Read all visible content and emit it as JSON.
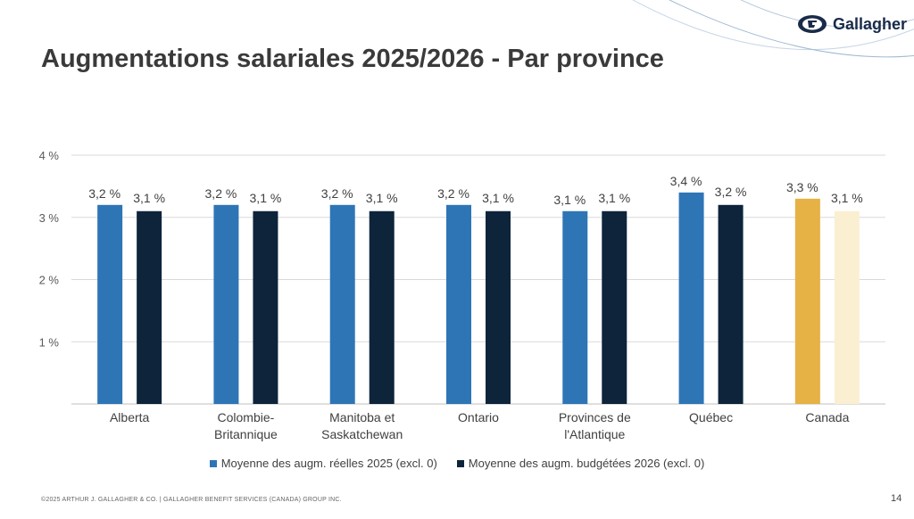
{
  "logo": {
    "text": "Gallagher"
  },
  "title": "Augmentations salariales 2025/2026 - Par province",
  "colors": {
    "actual": "#2e75b6",
    "budget": "#0d243b",
    "canada_actual": "#e6b245",
    "canada_budget": "#fbefd1",
    "grid": "#d9d9d9"
  },
  "chart_data": {
    "type": "bar",
    "categories": [
      [
        "Alberta"
      ],
      [
        "Colombie-",
        "Britannique"
      ],
      [
        "Manitoba et",
        "Saskatchewan"
      ],
      [
        "Ontario"
      ],
      [
        "Provinces de",
        "l'Atlantique"
      ],
      [
        "Québec"
      ],
      [
        "Canada"
      ]
    ],
    "series": [
      {
        "name": "Moyenne des augm. réelles 2025 (excl. 0)",
        "values": [
          3.2,
          3.2,
          3.2,
          3.2,
          3.1,
          3.4,
          3.3
        ],
        "labels": [
          "3,2 %",
          "3,2 %",
          "3,2 %",
          "3,2 %",
          "3,1 %",
          "3,4 %",
          "3,3 %"
        ]
      },
      {
        "name": "Moyenne des augm. budgétées 2026 (excl. 0)",
        "values": [
          3.1,
          3.1,
          3.1,
          3.1,
          3.1,
          3.2,
          3.1
        ],
        "labels": [
          "3,1 %",
          "3,1 %",
          "3,1 %",
          "3,1 %",
          "3,1 %",
          "3,2 %",
          "3,1 %"
        ]
      }
    ],
    "ylim": [
      0,
      4
    ],
    "yticks": [
      1,
      2,
      3,
      4
    ],
    "ytick_labels": [
      "1 %",
      "2 %",
      "3 %",
      "4 %"
    ],
    "grid": true,
    "legend": "bottom"
  },
  "footer": {
    "copyright": "©2025 ARTHUR J. GALLAGHER & CO. | GALLAGHER BENEFIT SERVICES (CANADA) GROUP INC.",
    "page_number": "14"
  }
}
